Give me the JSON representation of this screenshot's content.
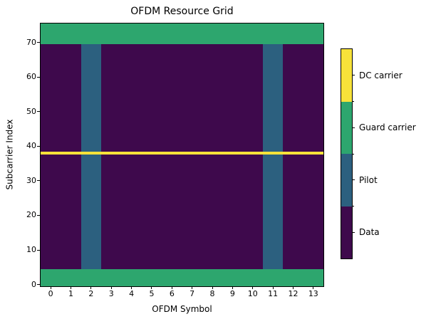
{
  "chart_data": {
    "type": "heatmap",
    "title": "OFDM Resource Grid",
    "xlabel": "OFDM Symbol",
    "ylabel": "Subcarrier Index",
    "x_ticks": [
      0,
      1,
      2,
      3,
      4,
      5,
      6,
      7,
      8,
      9,
      10,
      11,
      12,
      13
    ],
    "y_ticks": [
      0,
      10,
      20,
      30,
      40,
      50,
      60,
      70
    ],
    "n_symbols": 14,
    "n_subcarriers": 76,
    "x_range": [
      -0.5,
      13.5
    ],
    "y_range": [
      -0.5,
      75.5
    ],
    "grid": false,
    "legend_position": "right-colorbar",
    "categories": [
      {
        "value": 0,
        "label": "Data",
        "color": "#3e094c"
      },
      {
        "value": 1,
        "label": "Pilot",
        "color": "#2c607f"
      },
      {
        "value": 2,
        "label": "Guard carrier",
        "color": "#2da66e"
      },
      {
        "value": 3,
        "label": "DC carrier",
        "color": "#f7e23a"
      }
    ],
    "grid_rules": {
      "default": "Data",
      "pilot_symbols": [
        2,
        11
      ],
      "guard_subcarrier_ranges": [
        [
          0,
          4
        ],
        [
          70,
          75
        ]
      ],
      "dc_subcarrier": 38,
      "precedence_top_to_bottom": [
        "Guard carrier",
        "DC carrier",
        "Pilot",
        "Data"
      ]
    },
    "colorbar": {
      "labels_top_to_bottom": [
        "DC carrier",
        "Guard carrier",
        "Pilot",
        "Data"
      ]
    }
  }
}
